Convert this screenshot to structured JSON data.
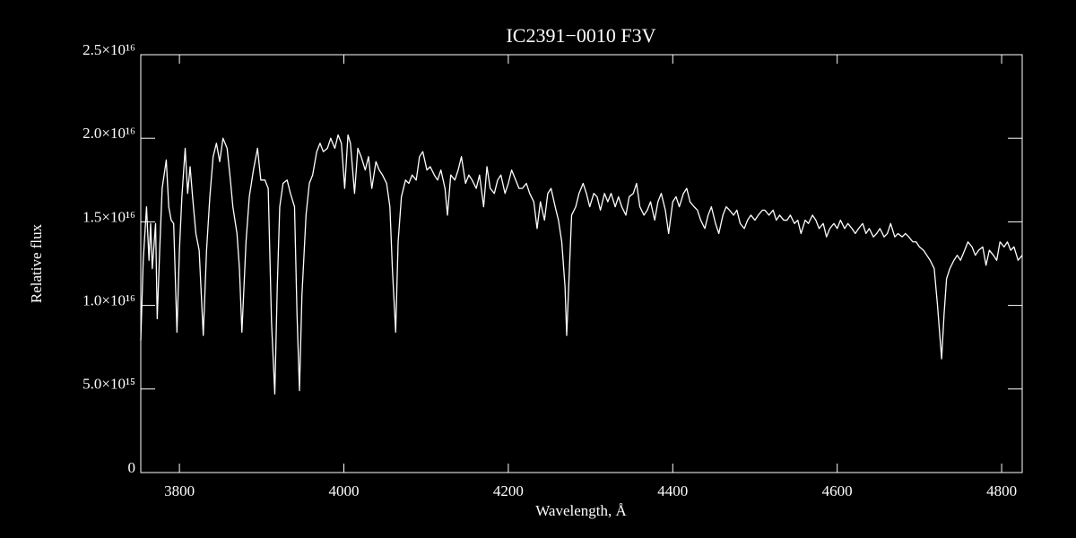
{
  "chart_data": {
    "type": "line",
    "title": "IC2391−0010   F3V",
    "x_label": "Wavelength, Å",
    "y_label": "Relative flux",
    "color": "#ffffff",
    "background": "#000000",
    "xlim": [
      3753,
      4825
    ],
    "ylim": [
      0,
      2.5e+16
    ],
    "xticks": [
      3800,
      4000,
      4200,
      4400,
      4600,
      4800
    ],
    "yticks": [
      0,
      {
        "value": 5000000000000000.0,
        "label": "5.0×10¹⁵"
      },
      {
        "value": 1e+16,
        "label": "1.0×10¹⁶"
      },
      {
        "value": 1.5e+16,
        "label": "1.5×10¹⁶"
      },
      {
        "value": 2e+16,
        "label": "2.0×10¹⁶"
      },
      {
        "value": 2.5e+16,
        "label": "2.5×10¹⁶"
      }
    ],
    "x": [
      3753,
      3756,
      3760,
      3763,
      3765,
      3767,
      3771,
      3773,
      3776,
      3779,
      3784,
      3787,
      3790,
      3793,
      3797,
      3800,
      3803,
      3807,
      3810,
      3813,
      3816,
      3820,
      3824,
      3829,
      3833,
      3837,
      3841,
      3845,
      3849,
      3853,
      3858,
      3862,
      3865,
      3870,
      3873,
      3876,
      3881,
      3885,
      3890,
      3895,
      3899,
      3904,
      3908,
      3912,
      3916,
      3919,
      3922,
      3926,
      3931,
      3935,
      3940,
      3943,
      3946,
      3949,
      3954,
      3958,
      3962,
      3967,
      3971,
      3975,
      3980,
      3984,
      3989,
      3993,
      3997,
      4001,
      4005,
      4008,
      4013,
      4017,
      4021,
      4026,
      4030,
      4034,
      4039,
      4043,
      4047,
      4052,
      4056,
      4059,
      4063,
      4066,
      4070,
      4075,
      4079,
      4083,
      4088,
      4092,
      4096,
      4101,
      4105,
      4110,
      4114,
      4118,
      4123,
      4126,
      4130,
      4135,
      4139,
      4143,
      4148,
      4152,
      4156,
      4161,
      4165,
      4170,
      4174,
      4178,
      4183,
      4187,
      4191,
      4196,
      4200,
      4204,
      4209,
      4213,
      4217,
      4222,
      4226,
      4231,
      4235,
      4239,
      4244,
      4248,
      4252,
      4257,
      4261,
      4265,
      4269,
      4271,
      4273,
      4277,
      4282,
      4286,
      4291,
      4295,
      4299,
      4304,
      4308,
      4312,
      4317,
      4321,
      4325,
      4330,
      4334,
      4338,
      4343,
      4347,
      4352,
      4356,
      4360,
      4365,
      4369,
      4373,
      4378,
      4382,
      4386,
      4391,
      4395,
      4400,
      4404,
      4408,
      4413,
      4417,
      4421,
      4426,
      4430,
      4434,
      4439,
      4443,
      4447,
      4452,
      4456,
      4461,
      4465,
      4469,
      4474,
      4478,
      4482,
      4487,
      4491,
      4495,
      4500,
      4504,
      4509,
      4512,
      4517,
      4522,
      4526,
      4530,
      4535,
      4539,
      4543,
      4548,
      4552,
      4556,
      4561,
      4565,
      4570,
      4574,
      4578,
      4583,
      4587,
      4591,
      4596,
      4600,
      4604,
      4609,
      4613,
      4618,
      4622,
      4626,
      4631,
      4635,
      4639,
      4644,
      4648,
      4652,
      4657,
      4661,
      4665,
      4670,
      4674,
      4679,
      4683,
      4687,
      4692,
      4696,
      4700,
      4705,
      4709,
      4713,
      4718,
      4722,
      4727,
      4730,
      4733,
      4737,
      4742,
      4746,
      4750,
      4755,
      4759,
      4764,
      4768,
      4772,
      4777,
      4781,
      4785,
      4790,
      4794,
      4798,
      4803,
      4807,
      4811,
      4815,
      4820,
      4825
    ],
    "values": [
      7900000000000000.0,
      1.27e+16,
      1.59e+16,
      1.27e+16,
      1.49e+16,
      1.22e+16,
      1.49e+16,
      9200000000000000.0,
      1.33e+16,
      1.7e+16,
      1.87e+16,
      1.59e+16,
      1.51e+16,
      1.49e+16,
      8400000000000000.0,
      1.33e+16,
      1.65e+16,
      1.94e+16,
      1.67e+16,
      1.83e+16,
      1.65e+16,
      1.43e+16,
      1.33e+16,
      8200000000000000.0,
      1.33e+16,
      1.65e+16,
      1.89e+16,
      1.97e+16,
      1.86e+16,
      2e+16,
      1.94e+16,
      1.75e+16,
      1.59e+16,
      1.43e+16,
      1.22e+16,
      8400000000000000.0,
      1.38e+16,
      1.65e+16,
      1.81e+16,
      1.94e+16,
      1.75e+16,
      1.75e+16,
      1.7e+16,
      9000000000000000.0,
      4700000000000000.0,
      1.11e+16,
      1.59e+16,
      1.73e+16,
      1.75e+16,
      1.67e+16,
      1.59e+16,
      9500000000000000.0,
      4900000000000000.0,
      1.06e+16,
      1.54e+16,
      1.73e+16,
      1.78e+16,
      1.92e+16,
      1.97e+16,
      1.92e+16,
      1.94e+16,
      2e+16,
      1.94e+16,
      2.02e+16,
      1.97e+16,
      1.7e+16,
      2.02e+16,
      1.97e+16,
      1.67e+16,
      1.94e+16,
      1.89e+16,
      1.81e+16,
      1.89e+16,
      1.7e+16,
      1.86e+16,
      1.81e+16,
      1.78e+16,
      1.73e+16,
      1.59e+16,
      1.22e+16,
      8400000000000000.0,
      1.38e+16,
      1.65e+16,
      1.75e+16,
      1.73e+16,
      1.78e+16,
      1.75e+16,
      1.89e+16,
      1.92e+16,
      1.81e+16,
      1.83e+16,
      1.78e+16,
      1.75e+16,
      1.81e+16,
      1.7e+16,
      1.54e+16,
      1.78e+16,
      1.75e+16,
      1.81e+16,
      1.89e+16,
      1.73e+16,
      1.78e+16,
      1.75e+16,
      1.7e+16,
      1.78e+16,
      1.59e+16,
      1.83e+16,
      1.7e+16,
      1.67e+16,
      1.75e+16,
      1.78e+16,
      1.67e+16,
      1.73e+16,
      1.81e+16,
      1.75e+16,
      1.7e+16,
      1.7e+16,
      1.73e+16,
      1.67e+16,
      1.62e+16,
      1.46e+16,
      1.62e+16,
      1.51e+16,
      1.67e+16,
      1.7e+16,
      1.59e+16,
      1.51e+16,
      1.38e+16,
      1.11e+16,
      8200000000000000.0,
      1.06e+16,
      1.54e+16,
      1.59e+16,
      1.67e+16,
      1.73e+16,
      1.67e+16,
      1.59e+16,
      1.67e+16,
      1.65e+16,
      1.57e+16,
      1.67e+16,
      1.62e+16,
      1.67e+16,
      1.59e+16,
      1.65e+16,
      1.59e+16,
      1.54e+16,
      1.65e+16,
      1.67e+16,
      1.73e+16,
      1.59e+16,
      1.54e+16,
      1.57e+16,
      1.62e+16,
      1.51e+16,
      1.62e+16,
      1.67e+16,
      1.57e+16,
      1.43e+16,
      1.62e+16,
      1.65e+16,
      1.59e+16,
      1.67e+16,
      1.7e+16,
      1.62e+16,
      1.59e+16,
      1.57e+16,
      1.51e+16,
      1.46e+16,
      1.54e+16,
      1.59e+16,
      1.49e+16,
      1.43e+16,
      1.54e+16,
      1.59e+16,
      1.57e+16,
      1.54e+16,
      1.57e+16,
      1.49e+16,
      1.46e+16,
      1.51e+16,
      1.54e+16,
      1.51e+16,
      1.54e+16,
      1.57e+16,
      1.57e+16,
      1.54e+16,
      1.57e+16,
      1.51e+16,
      1.54e+16,
      1.51e+16,
      1.51e+16,
      1.54e+16,
      1.49e+16,
      1.51e+16,
      1.43e+16,
      1.51e+16,
      1.49e+16,
      1.54e+16,
      1.51e+16,
      1.46e+16,
      1.49e+16,
      1.41e+16,
      1.46e+16,
      1.49e+16,
      1.46e+16,
      1.51e+16,
      1.46e+16,
      1.49e+16,
      1.46e+16,
      1.43e+16,
      1.46e+16,
      1.49e+16,
      1.43e+16,
      1.46e+16,
      1.41e+16,
      1.43e+16,
      1.46e+16,
      1.41e+16,
      1.43e+16,
      1.49e+16,
      1.41e+16,
      1.43e+16,
      1.41e+16,
      1.43e+16,
      1.41e+16,
      1.38e+16,
      1.38e+16,
      1.35e+16,
      1.33e+16,
      1.3e+16,
      1.27e+16,
      1.22e+16,
      1e+16,
      6800000000000000.0,
      9500000000000000.0,
      1.16e+16,
      1.22e+16,
      1.27e+16,
      1.3e+16,
      1.27e+16,
      1.33e+16,
      1.38e+16,
      1.35e+16,
      1.3e+16,
      1.33e+16,
      1.35e+16,
      1.24e+16,
      1.33e+16,
      1.3e+16,
      1.27e+16,
      1.38e+16,
      1.35e+16,
      1.38e+16,
      1.33e+16,
      1.35e+16,
      1.27e+16,
      1.3e+16
    ]
  }
}
